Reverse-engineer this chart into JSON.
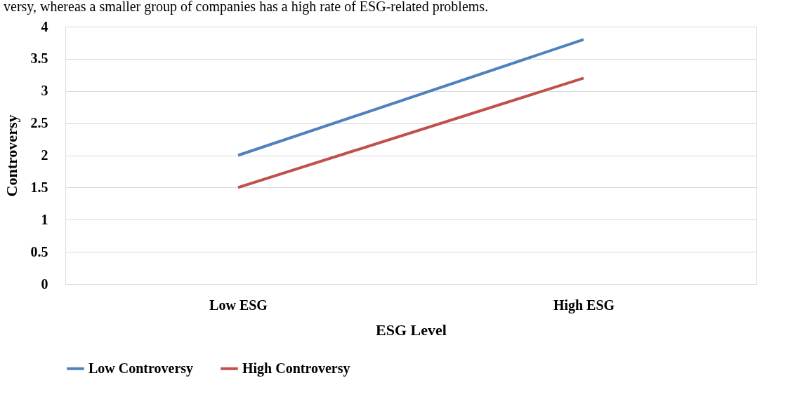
{
  "chart_data": {
    "type": "line",
    "xlabel": "ESG Level",
    "ylabel": "Controversy",
    "annotations": [
      "versy, whereas a smaller group of companies has a high rate of ESG-related problems."
    ],
    "categories": [
      "Low ESG",
      "High ESG"
    ],
    "series": [
      {
        "name": "Low Controversy",
        "color": "#4f81bd",
        "values": [
          2,
          3.8
        ]
      },
      {
        "name": "High Controversy",
        "color": "#c0504d",
        "values": [
          1.5,
          3.2
        ]
      }
    ],
    "ylim": [
      0,
      4
    ],
    "yticks": [
      0,
      0.5,
      1,
      1.5,
      2,
      2.5,
      3,
      3.5,
      4
    ],
    "grid": "y",
    "legend": "bottom",
    "marker": "none",
    "line_style": "solid"
  }
}
